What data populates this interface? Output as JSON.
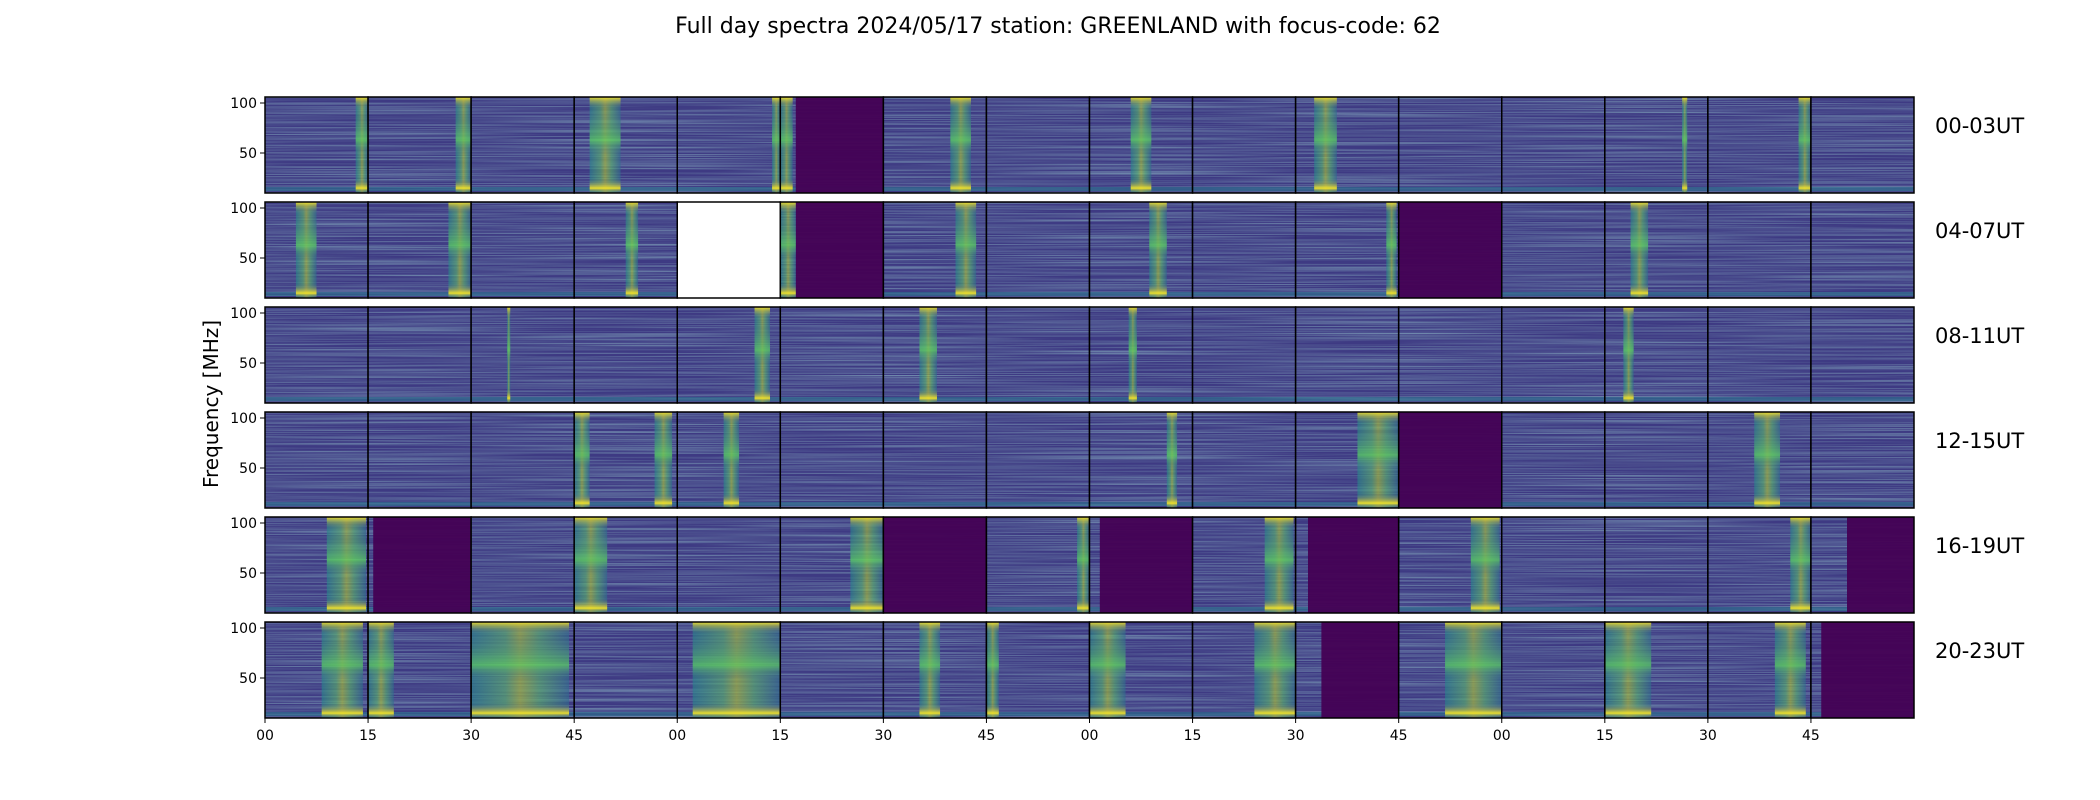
{
  "chart_data": {
    "type": "heatmap",
    "title": "Full day spectra 2024/05/17 station: GREENLAND with focus-code: 62",
    "ylabel": "Frequency [MHz]",
    "y_ticks": [
      50,
      100
    ],
    "x_ticks": [
      "00",
      "15",
      "30",
      "45",
      "00",
      "15",
      "30",
      "45",
      "00",
      "15",
      "30",
      "45",
      "00",
      "15",
      "30",
      "45"
    ],
    "colormap": "viridis",
    "rows": [
      {
        "label": "00-03UT",
        "panels": [
          {
            "bursts": [
              [
                0.88,
                1.0
              ]
            ]
          },
          {
            "bursts": [
              [
                0.85,
                1.0
              ]
            ]
          },
          {
            "bursts": []
          },
          {
            "bursts": [
              [
                0.15,
                0.45
              ]
            ]
          },
          {
            "bursts": [
              [
                0.92,
                1.0
              ]
            ]
          },
          {
            "dark": [
              0.15,
              1.0
            ],
            "bursts": [
              [
                0.0,
                0.12
              ]
            ]
          },
          {
            "bursts": [
              [
                0.65,
                0.85
              ]
            ]
          },
          {
            "bursts": []
          },
          {
            "bursts": [
              [
                0.4,
                0.6
              ]
            ]
          },
          {
            "bursts": []
          },
          {
            "bursts": [
              [
                0.18,
                0.4
              ]
            ]
          },
          {
            "bursts": []
          },
          {
            "bursts": []
          },
          {
            "bursts": [
              [
                0.75,
                0.8
              ]
            ]
          },
          {
            "bursts": [
              [
                0.88,
                1.0
              ]
            ]
          },
          {
            "bursts": []
          }
        ]
      },
      {
        "label": "04-07UT",
        "panels": [
          {
            "bursts": [
              [
                0.3,
                0.5
              ]
            ]
          },
          {
            "bursts": [
              [
                0.78,
                1.0
              ]
            ]
          },
          {
            "bursts": []
          },
          {
            "bursts": [
              [
                0.5,
                0.62
              ]
            ]
          },
          {
            "blank": true
          },
          {
            "dark": [
              0.15,
              1.0
            ],
            "bursts": [
              [
                0.0,
                0.15
              ]
            ]
          },
          {
            "bursts": [
              [
                0.7,
                0.9
              ]
            ]
          },
          {
            "bursts": []
          },
          {
            "bursts": [
              [
                0.58,
                0.75
              ]
            ]
          },
          {
            "bursts": []
          },
          {
            "bursts": [
              [
                0.88,
                0.98
              ]
            ]
          },
          {
            "dark": [
              0.0,
              1.0
            ],
            "bursts": []
          },
          {
            "bursts": []
          },
          {
            "bursts": [
              [
                0.25,
                0.42
              ]
            ]
          },
          {
            "bursts": []
          },
          {
            "bursts": []
          }
        ]
      },
      {
        "label": "08-11UT",
        "panels": [
          {
            "bursts": []
          },
          {
            "bursts": []
          },
          {
            "bursts": [
              [
                0.35,
                0.38
              ]
            ]
          },
          {
            "bursts": []
          },
          {
            "bursts": [
              [
                0.75,
                0.9
              ]
            ]
          },
          {
            "bursts": []
          },
          {
            "bursts": [
              [
                0.35,
                0.52
              ]
            ]
          },
          {
            "bursts": []
          },
          {
            "bursts": [
              [
                0.38,
                0.46
              ]
            ]
          },
          {
            "bursts": []
          },
          {
            "bursts": []
          },
          {
            "bursts": []
          },
          {
            "bursts": []
          },
          {
            "bursts": [
              [
                0.18,
                0.28
              ]
            ]
          },
          {
            "bursts": []
          },
          {
            "bursts": []
          }
        ]
      },
      {
        "label": "12-15UT",
        "panels": [
          {
            "bursts": []
          },
          {
            "bursts": []
          },
          {
            "bursts": []
          },
          {
            "bursts": [
              [
                0.0,
                0.15
              ],
              [
                0.78,
                0.95
              ]
            ]
          },
          {
            "bursts": [
              [
                0.45,
                0.6
              ]
            ]
          },
          {
            "bursts": []
          },
          {
            "bursts": []
          },
          {
            "bursts": []
          },
          {
            "bursts": [
              [
                0.75,
                0.85
              ]
            ]
          },
          {
            "bursts": []
          },
          {
            "bursts": [
              [
                0.6,
                1.0
              ]
            ]
          },
          {
            "dark": [
              0.0,
              1.0
            ],
            "bursts": []
          },
          {
            "bursts": []
          },
          {
            "bursts": []
          },
          {
            "bursts": [
              [
                0.45,
                0.7
              ]
            ]
          },
          {
            "bursts": []
          }
        ]
      },
      {
        "label": "16-19UT",
        "panels": [
          {
            "bursts": [
              [
                0.6,
                0.98
              ]
            ]
          },
          {
            "dark": [
              0.05,
              1.0
            ],
            "bursts": []
          },
          {
            "bursts": []
          },
          {
            "bursts": [
              [
                0.0,
                0.32
              ]
            ]
          },
          {
            "bursts": []
          },
          {
            "bursts": [
              [
                0.68,
                1.0
              ]
            ]
          },
          {
            "dark": [
              0.0,
              1.0
            ],
            "bursts": []
          },
          {
            "bursts": [
              [
                0.88,
                1.0
              ]
            ]
          },
          {
            "dark": [
              0.1,
              1.0
            ],
            "bursts": []
          },
          {
            "bursts": [
              [
                0.7,
                0.98
              ]
            ]
          },
          {
            "dark": [
              0.12,
              1.0
            ],
            "bursts": []
          },
          {
            "bursts": [
              [
                0.7,
                0.98
              ]
            ]
          },
          {
            "bursts": []
          },
          {
            "bursts": []
          },
          {
            "bursts": [
              [
                0.8,
                1.0
              ]
            ]
          },
          {
            "dark": [
              0.35,
              1.0
            ],
            "bursts": []
          }
        ]
      },
      {
        "label": "20-23UT",
        "panels": [
          {
            "bursts": [
              [
                0.55,
                0.95
              ]
            ]
          },
          {
            "bursts": [
              [
                0.0,
                0.25
              ]
            ]
          },
          {
            "bursts": [
              [
                0.0,
                0.95
              ]
            ]
          },
          {
            "bursts": []
          },
          {
            "bursts": [
              [
                0.15,
                1.0
              ]
            ]
          },
          {
            "bursts": []
          },
          {
            "bursts": [
              [
                0.35,
                0.55
              ]
            ]
          },
          {
            "bursts": [
              [
                0.0,
                0.12
              ]
            ]
          },
          {
            "bursts": [
              [
                0.0,
                0.35
              ]
            ]
          },
          {
            "bursts": [
              [
                0.6,
                1.0
              ]
            ]
          },
          {
            "dark": [
              0.25,
              1.0
            ],
            "bursts": []
          },
          {
            "bursts": [
              [
                0.45,
                1.0
              ]
            ]
          },
          {
            "bursts": []
          },
          {
            "bursts": [
              [
                0.0,
                0.45
              ]
            ]
          },
          {
            "bursts": [
              [
                0.65,
                0.95
              ]
            ]
          },
          {
            "dark": [
              0.1,
              1.0
            ],
            "bursts": []
          }
        ]
      }
    ]
  }
}
